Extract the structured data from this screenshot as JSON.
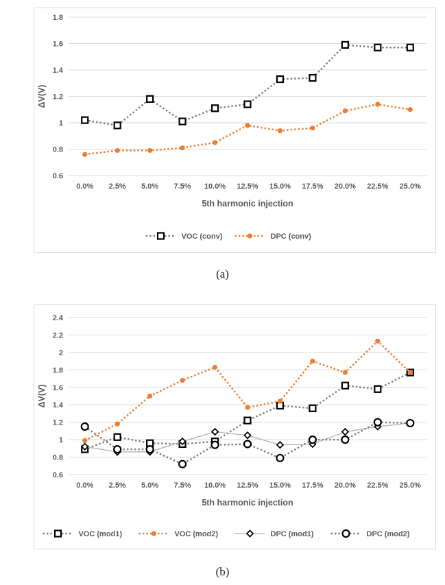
{
  "captions": {
    "a": "(a)",
    "b": "(b)"
  },
  "chart_data": [
    {
      "type": "line",
      "xlabel": "5th harmonic injection",
      "ylabel": "ΔV(V)",
      "categories": [
        "0.0%",
        "2.5%",
        "5.0%",
        "7.5%",
        "10.0%",
        "12.5%",
        "15.0%",
        "17.5%",
        "20.0%",
        "22.5%",
        "25.0%"
      ],
      "ylim": [
        0.6,
        1.8
      ],
      "yticks": [
        0.6,
        0.8,
        1,
        1.2,
        1.4,
        1.6,
        1.8
      ],
      "ytick_labels": [
        "0.6",
        "0.8",
        "1",
        "1.2",
        "1.4",
        "1.6",
        "1.8"
      ],
      "grid": true,
      "legend_position": "bottom",
      "series": [
        {
          "name": "VOC (conv)",
          "color": "#7f7f7f",
          "marker_color": "#000000",
          "marker": "square",
          "dash": "dotted",
          "values": [
            1.02,
            0.98,
            1.18,
            1.01,
            1.11,
            1.14,
            1.33,
            1.34,
            1.59,
            1.57,
            1.57
          ]
        },
        {
          "name": "DPC (conv)",
          "color": "#ed7d31",
          "marker_color": "#ed7d31",
          "marker": "dot",
          "dash": "dotted",
          "values": [
            0.76,
            0.79,
            0.79,
            0.81,
            0.85,
            0.98,
            0.94,
            0.96,
            1.09,
            1.14,
            1.1
          ]
        }
      ]
    },
    {
      "type": "line",
      "xlabel": "5th harmonic injection",
      "ylabel": "ΔV(V)",
      "categories": [
        "0.0%",
        "2.5%",
        "5.0%",
        "7.5%",
        "10.0%",
        "12.5%",
        "15.0%",
        "17.5%",
        "20.0%",
        "22.5%",
        "25.0%"
      ],
      "ylim": [
        0.6,
        2.4
      ],
      "yticks": [
        0.6,
        0.8,
        1,
        1.2,
        1.4,
        1.6,
        1.8,
        2,
        2.2,
        2.4
      ],
      "ytick_labels": [
        "0.6",
        "0.8",
        "1",
        "1.2",
        "1.4",
        "1.6",
        "1.8",
        "2",
        "2.2",
        "2.4"
      ],
      "grid": true,
      "legend_position": "bottom",
      "series": [
        {
          "name": "VOC (mod1)",
          "color": "#7f7f7f",
          "marker_color": "#000000",
          "marker": "square",
          "dash": "dotted",
          "values": [
            0.89,
            1.03,
            0.96,
            0.95,
            0.98,
            1.22,
            1.39,
            1.36,
            1.62,
            1.58,
            1.77
          ]
        },
        {
          "name": "VOC (mod2)",
          "color": "#ed7d31",
          "marker_color": "#ed7d31",
          "marker": "dot",
          "dash": "dotted",
          "values": [
            0.99,
            1.18,
            1.5,
            1.68,
            1.83,
            1.37,
            1.44,
            1.9,
            1.77,
            2.13,
            1.77
          ]
        },
        {
          "name": "DPC (mod1)",
          "color": "#b0b0b0",
          "marker_color": "#000000",
          "marker": "diamond",
          "dash": "solid",
          "values": [
            0.92,
            0.86,
            0.86,
            0.98,
            1.09,
            1.05,
            0.94,
            0.95,
            1.09,
            1.15,
            1.19
          ]
        },
        {
          "name": "DPC (mod2)",
          "color": "#7f7f7f",
          "marker_color": "#000000",
          "marker": "circle",
          "dash": "dotted",
          "values": [
            1.15,
            0.89,
            0.89,
            0.72,
            0.94,
            0.95,
            0.79,
            1.0,
            1.0,
            1.2,
            1.19
          ]
        }
      ]
    }
  ]
}
